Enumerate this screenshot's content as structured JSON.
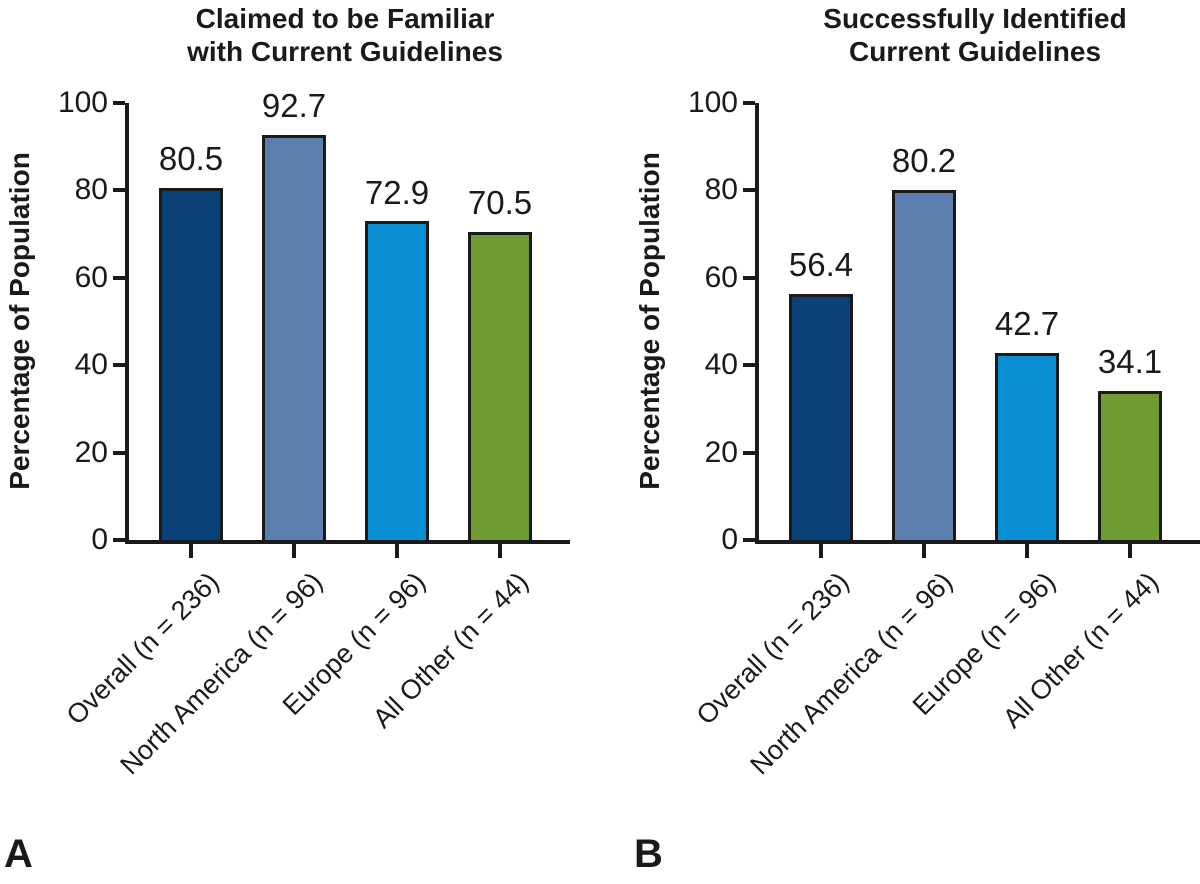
{
  "figure": {
    "background": "#ffffff",
    "ink": "#1a1a1a",
    "panels": [
      {
        "letter": "A",
        "title_lines": [
          "Claimed to be Familiar",
          "with Current Guidelines"
        ]
      },
      {
        "letter": "B",
        "title_lines": [
          "Successfully Identified",
          "Current Guidelines"
        ]
      }
    ]
  },
  "chart_data": [
    {
      "type": "bar",
      "title": "Claimed to be Familiar with Current Guidelines",
      "xlabel": "",
      "ylabel": "Percentage of Population",
      "categories": [
        "Overall (n = 236)",
        "North America (n = 96)",
        "Europe (n = 96)",
        "All Other (n = 44)"
      ],
      "values": [
        80.5,
        92.7,
        72.9,
        70.5
      ],
      "value_labels": [
        "80.5",
        "92.7",
        "72.9",
        "70.5"
      ],
      "bar_colors": [
        "#0a4078",
        "#5b7eae",
        "#0a90d2",
        "#6f9d33"
      ],
      "ylim": [
        0,
        100
      ],
      "yticks": [
        0,
        20,
        40,
        60,
        80,
        100
      ],
      "grid": false,
      "legend": "none",
      "category_label_rotation_deg": -45
    },
    {
      "type": "bar",
      "title": "Successfully Identified Current Guidelines",
      "xlabel": "",
      "ylabel": "Percentage of Population",
      "categories": [
        "Overall (n = 236)",
        "North America (n = 96)",
        "Europe (n = 96)",
        "All Other (n = 44)"
      ],
      "values": [
        56.4,
        80.2,
        42.7,
        34.1
      ],
      "value_labels": [
        "56.4",
        "80.2",
        "42.7",
        "34.1"
      ],
      "bar_colors": [
        "#0a4078",
        "#5b7eae",
        "#0a90d2",
        "#6f9d33"
      ],
      "ylim": [
        0,
        100
      ],
      "yticks": [
        0,
        20,
        40,
        60,
        80,
        100
      ],
      "grid": false,
      "legend": "none",
      "category_label_rotation_deg": -45
    }
  ]
}
